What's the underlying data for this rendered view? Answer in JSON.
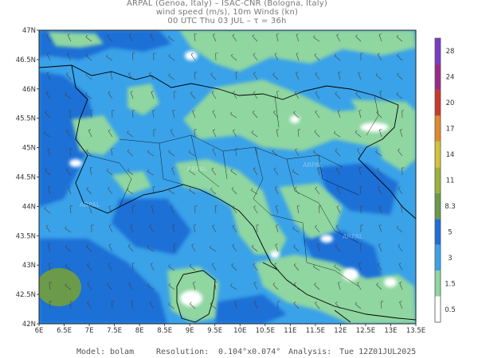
{
  "header": {
    "line1": "ARPAL (Genoa, Italy)  –  ISAC-CNR (Bologna, Italy)",
    "line2": "wind speed (m/s), 10m Winds (kn)",
    "line3": "00 UTC Thu 03 JUL  –  τ = 36h"
  },
  "axes": {
    "lat_labels": [
      "47N",
      "46.5N",
      "46N",
      "45.5N",
      "45N",
      "44.5N",
      "44N",
      "43.5N",
      "43N",
      "42.5N",
      "42N"
    ],
    "lon_labels": [
      "6E",
      "6.5E",
      "7E",
      "7.5E",
      "8E",
      "8.5E",
      "9E",
      "9.5E",
      "10E",
      "10.5E",
      "11E",
      "11.5E",
      "12E",
      "12.5E",
      "13E",
      "13.5E"
    ],
    "lat_range": [
      42,
      47
    ],
    "lon_range": [
      6,
      13.5
    ]
  },
  "colorbar": {
    "labels": [
      "0.5",
      "1.5",
      "3",
      "5",
      "8.3",
      "11",
      "14",
      "17",
      "20",
      "24",
      "28"
    ],
    "colors": [
      "#ffffff",
      "#8fd6a0",
      "#3aa2e8",
      "#1e6fd6",
      "#6b9a4a",
      "#9ab23a",
      "#d2c43a",
      "#e08a2a",
      "#c83a2a",
      "#9a2a8a",
      "#7a3ac8"
    ]
  },
  "watermark": "ARPAL",
  "footer": {
    "model_label": "Model:",
    "model_value": "bolam",
    "resolution_label": "Resolution:",
    "resolution_value": "0.104°x0.074°",
    "analysis_label": "Analysis:",
    "analysis_value": "Tue 12Z01JUL2025"
  }
}
